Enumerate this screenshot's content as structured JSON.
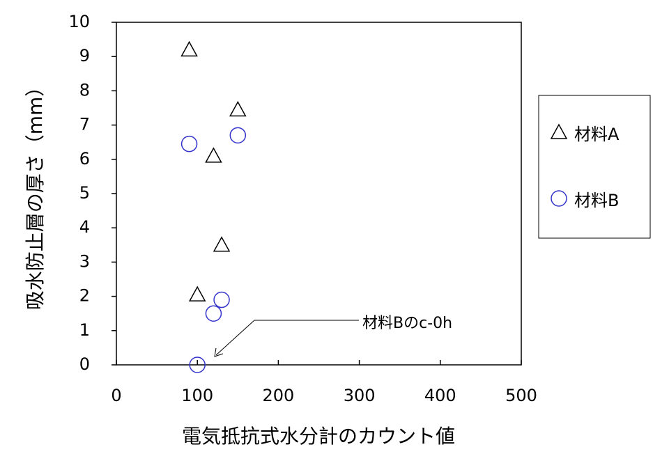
{
  "chart_data": {
    "type": "scatter",
    "x_label": "電気抵抗式水分計のカウント値",
    "y_label": "吸水防止層の厚さ（mm）",
    "xlim": [
      0,
      500
    ],
    "xticks": [
      0,
      100,
      200,
      300,
      400,
      500
    ],
    "ylim": [
      0,
      10
    ],
    "yticks": [
      0,
      1,
      2,
      3,
      4,
      5,
      6,
      7,
      8,
      9,
      10
    ],
    "series": [
      {
        "name": "材料A",
        "color": "#000000",
        "marker": "triangle",
        "x": [
          90,
          150,
          120,
          130,
          100
        ],
        "values": [
          9.2,
          7.45,
          6.1,
          3.5,
          2.05
        ]
      },
      {
        "name": "材料B",
        "color": "#3333cc",
        "marker": "circle",
        "x": [
          90,
          150,
          130,
          120,
          100
        ],
        "values": [
          6.45,
          6.7,
          1.9,
          1.5,
          0
        ]
      }
    ],
    "annotation": "材料Bのc-0h",
    "legend": "right"
  }
}
